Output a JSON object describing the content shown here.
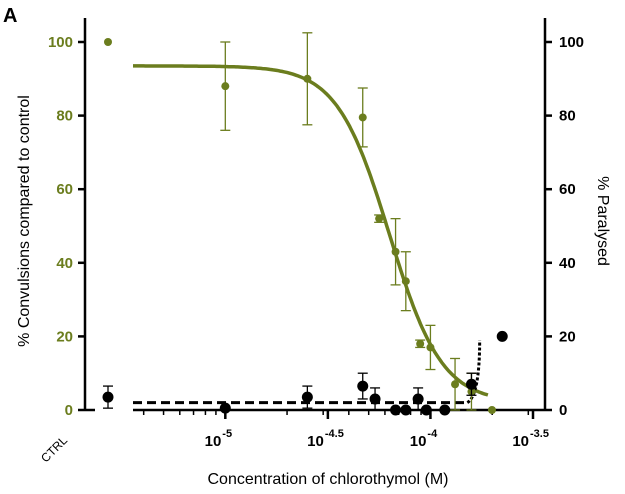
{
  "chart_data": {
    "type": "scatter",
    "panel_label": "A",
    "xlabel": "Concentration of chlorothymol (M)",
    "ylabel_left": "% Convulsions compared to control",
    "ylabel_right": "% Paralysed",
    "x_scale": "log10",
    "x_range_log10": [
      -5.45,
      -3.5
    ],
    "x_ticks": [
      {
        "base": "10",
        "exp": "-5",
        "log10": -5
      },
      {
        "base": "10",
        "exp": "-4.5",
        "log10": -4.5
      },
      {
        "base": "10",
        "exp": "-4",
        "log10": -4
      },
      {
        "base": "10",
        "exp": "-3.5",
        "log10": -3.5
      }
    ],
    "control_label": "CTRL",
    "ylim": [
      0,
      105
    ],
    "y_ticks": [
      "0",
      "20",
      "40",
      "60",
      "80",
      "100"
    ],
    "colors": {
      "convulsions": "#6b7d1e",
      "paralysed": "#000000"
    },
    "series": [
      {
        "key": "convulsions",
        "axis": "left",
        "control": {
          "y": 100
        },
        "points": [
          {
            "log10x": -5.0,
            "y": 88,
            "err": 12
          },
          {
            "log10x": -4.6,
            "y": 90,
            "err": 12.5
          },
          {
            "log10x": -4.33,
            "y": 79.5,
            "err": 8
          },
          {
            "log10x": -4.25,
            "y": 52,
            "err": 1
          },
          {
            "log10x": -4.17,
            "y": 43,
            "err": 9
          },
          {
            "log10x": -4.12,
            "y": 35,
            "err": 8
          },
          {
            "log10x": -4.05,
            "y": 18,
            "err": 1
          },
          {
            "log10x": -4.0,
            "y": 17,
            "err": 6
          },
          {
            "log10x": -3.88,
            "y": 7,
            "err": 7
          },
          {
            "log10x": -3.8,
            "y": 5,
            "err": 5
          },
          {
            "log10x": -3.7,
            "y": 0,
            "err": 0
          }
        ],
        "fit": {
          "top": 93.5,
          "bottom": 2,
          "log_ec50": -4.2,
          "hill": 3.4,
          "x_from": -5.45,
          "x_to": -3.72
        }
      },
      {
        "key": "paralysed",
        "axis": "right",
        "control": {
          "y": 3.5,
          "err": 3
        },
        "points": [
          {
            "log10x": -5.0,
            "y": 0.5,
            "err": 0
          },
          {
            "log10x": -4.6,
            "y": 3.5,
            "err": 3
          },
          {
            "log10x": -4.33,
            "y": 6.5,
            "err": 3.5
          },
          {
            "log10x": -4.27,
            "y": 3,
            "err": 3
          },
          {
            "log10x": -4.17,
            "y": 0,
            "err": 0
          },
          {
            "log10x": -4.12,
            "y": 0,
            "err": 0
          },
          {
            "log10x": -4.06,
            "y": 3,
            "err": 3
          },
          {
            "log10x": -4.02,
            "y": 0,
            "err": 0
          },
          {
            "log10x": -3.93,
            "y": 0,
            "err": 0
          },
          {
            "log10x": -3.8,
            "y": 7,
            "err": 3
          },
          {
            "log10x": -3.65,
            "y": 20,
            "err": 0
          }
        ],
        "fit": {
          "baseline": 2,
          "x_from": -5.45,
          "x_to": -3.82,
          "rise_x_from": -3.82,
          "rise_x_to": -3.76,
          "rise_y_to": 19
        }
      }
    ]
  }
}
